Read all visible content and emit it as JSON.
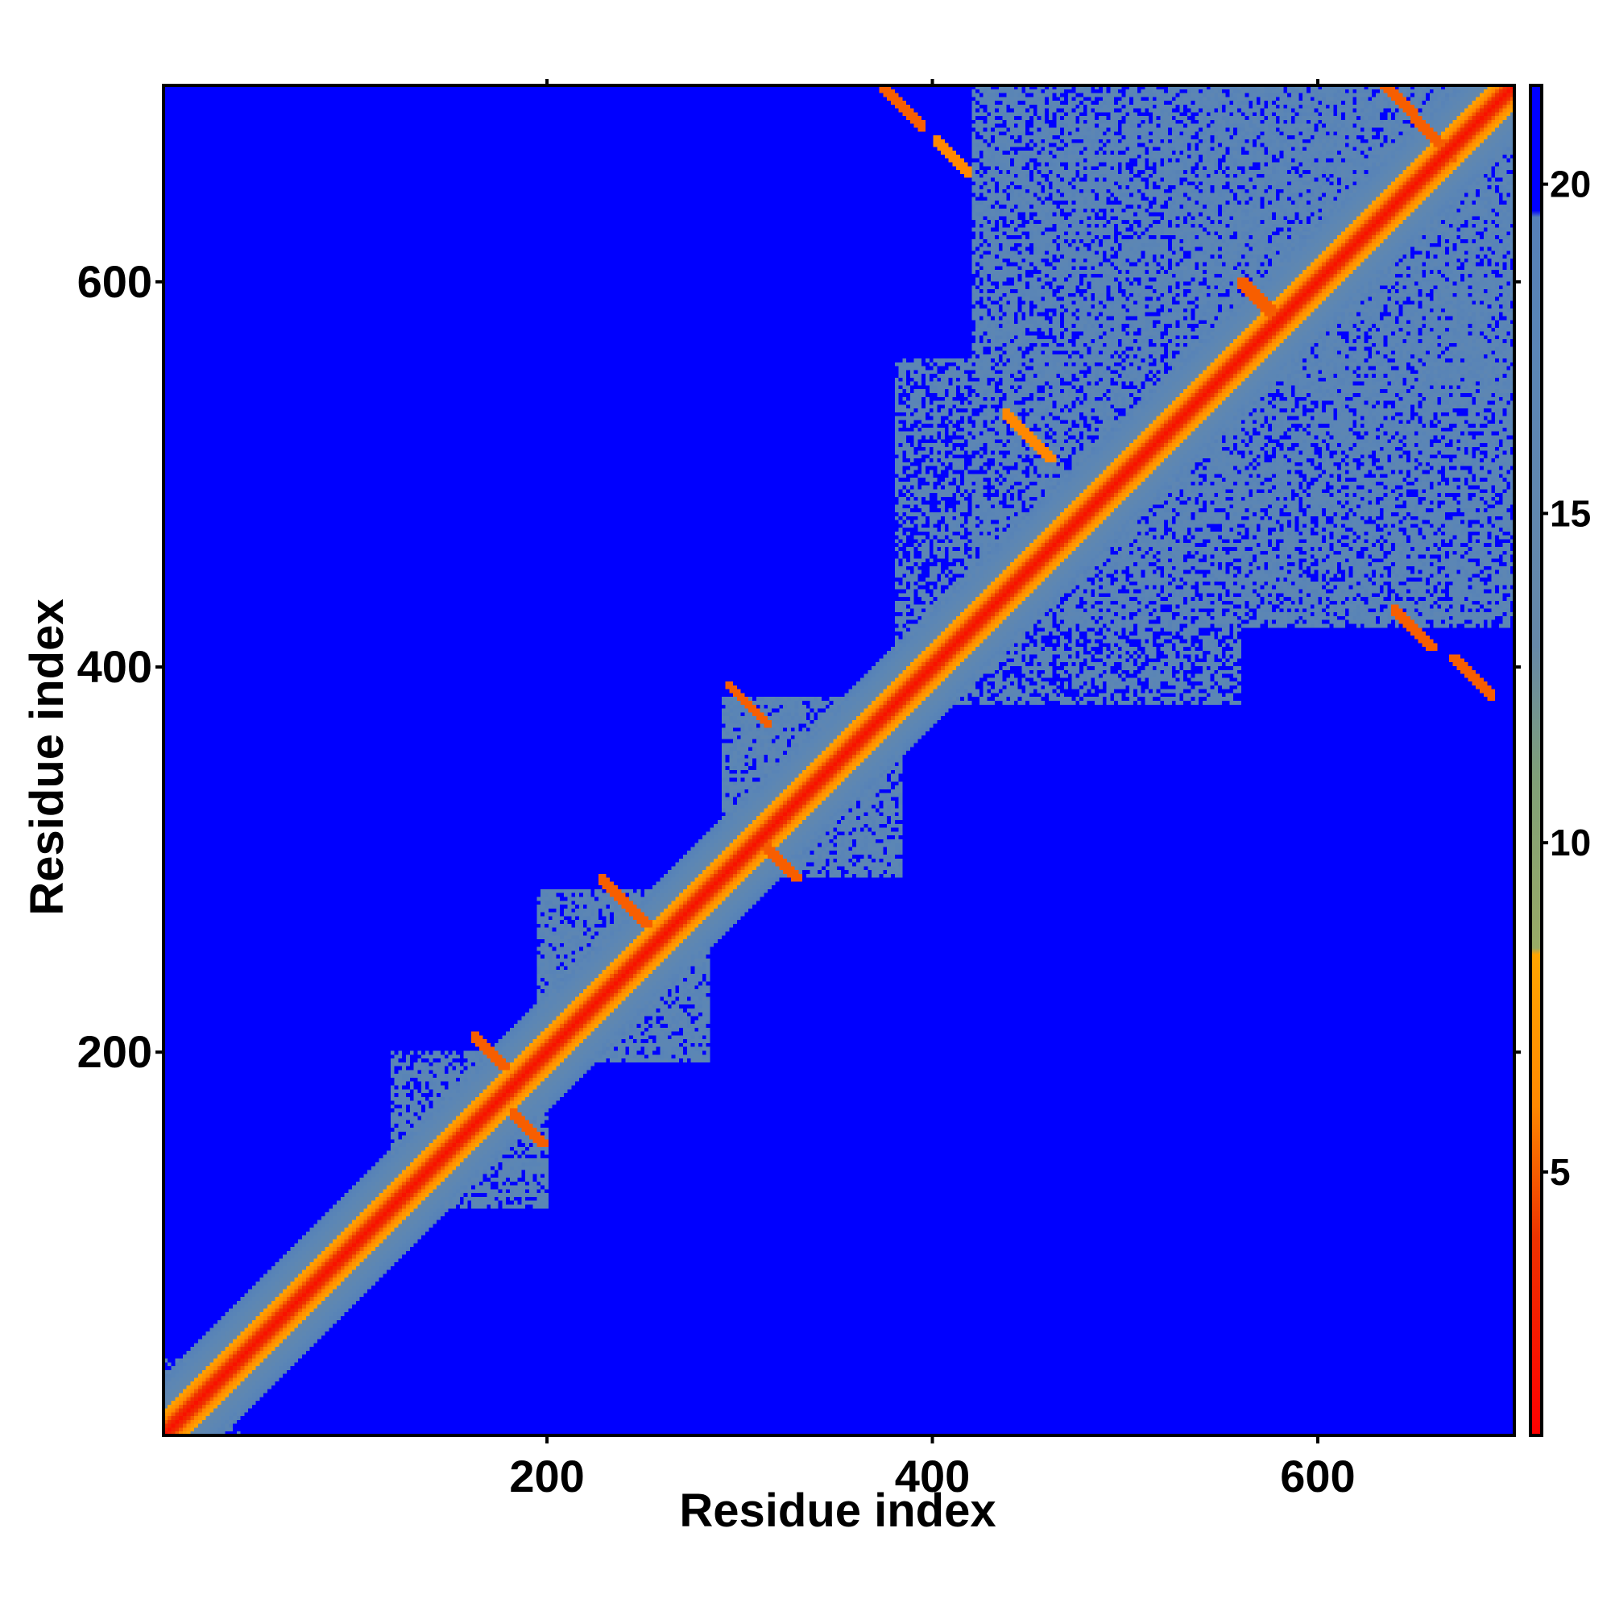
{
  "chart_data": {
    "type": "heatmap",
    "title": "",
    "xlabel": "Residue index",
    "ylabel": "Residue index",
    "xlim": [
      1,
      702
    ],
    "ylim": [
      1,
      702
    ],
    "x_ticks": [
      {
        "value": 200,
        "label": "200"
      },
      {
        "value": 400,
        "label": "400"
      },
      {
        "value": 600,
        "label": "600"
      }
    ],
    "y_ticks": [
      {
        "value": 200,
        "label": "200"
      },
      {
        "value": 400,
        "label": "400"
      },
      {
        "value": 600,
        "label": "600"
      }
    ],
    "colorbar": {
      "range": [
        1,
        21.5
      ],
      "ticks": [
        {
          "value": 5,
          "label": "5"
        },
        {
          "value": 10,
          "label": "10"
        },
        {
          "value": 15,
          "label": "15"
        },
        {
          "value": 20,
          "label": "20"
        }
      ],
      "stops": [
        {
          "value": 1,
          "color": "#ff0000"
        },
        {
          "value": 4,
          "color": "#ee3300"
        },
        {
          "value": 6,
          "color": "#ff8800"
        },
        {
          "value": 8.3,
          "color": "#ffa500"
        },
        {
          "value": 8.4,
          "color": "#99aa66"
        },
        {
          "value": 11,
          "color": "#80a078"
        },
        {
          "value": 13,
          "color": "#6688a8"
        },
        {
          "value": 17,
          "color": "#5b86b5"
        },
        {
          "value": 19.5,
          "color": "#5580b8"
        },
        {
          "value": 19.6,
          "color": "#0000ff"
        },
        {
          "value": 21.5,
          "color": "#0000ff"
        }
      ]
    },
    "background_value": 21,
    "diagonal_value": 2,
    "domains": [
      {
        "from": 1,
        "to": 40,
        "value": 16,
        "density": 0.4
      },
      {
        "from": 118,
        "to": 200,
        "value": 16,
        "density": 0.7
      },
      {
        "from": 195,
        "to": 285,
        "value": 16,
        "density": 0.8
      },
      {
        "from": 290,
        "to": 385,
        "value": 16,
        "density": 0.8
      },
      {
        "from": 380,
        "to": 560,
        "value": 16,
        "density": 0.6
      },
      {
        "from": 420,
        "to": 702,
        "value": 16,
        "density": 0.75
      },
      {
        "from": 540,
        "to": 702,
        "value": 16,
        "density": 0.85
      }
    ],
    "contact_lines": [
      {
        "i0": 240,
        "j0": 278,
        "len": 12,
        "value": 5
      },
      {
        "i0": 305,
        "j0": 380,
        "len": 10,
        "value": 5
      },
      {
        "i0": 320,
        "j0": 300,
        "len": 10,
        "value": 5
      },
      {
        "i0": 385,
        "j0": 690,
        "len": 10,
        "value": 5
      },
      {
        "i0": 410,
        "j0": 665,
        "len": 8,
        "value": 6
      },
      {
        "i0": 640,
        "j0": 697,
        "len": 10,
        "value": 5
      },
      {
        "i0": 660,
        "j0": 675,
        "len": 10,
        "value": 5
      },
      {
        "i0": 650,
        "j0": 420,
        "len": 10,
        "value": 5
      },
      {
        "i0": 680,
        "j0": 395,
        "len": 10,
        "value": 5
      },
      {
        "i0": 570,
        "j0": 590,
        "len": 10,
        "value": 5
      },
      {
        "i0": 450,
        "j0": 520,
        "len": 12,
        "value": 6
      },
      {
        "i0": 170,
        "j0": 200,
        "len": 8,
        "value": 5
      },
      {
        "i0": 190,
        "j0": 160,
        "len": 8,
        "value": 5
      }
    ]
  }
}
